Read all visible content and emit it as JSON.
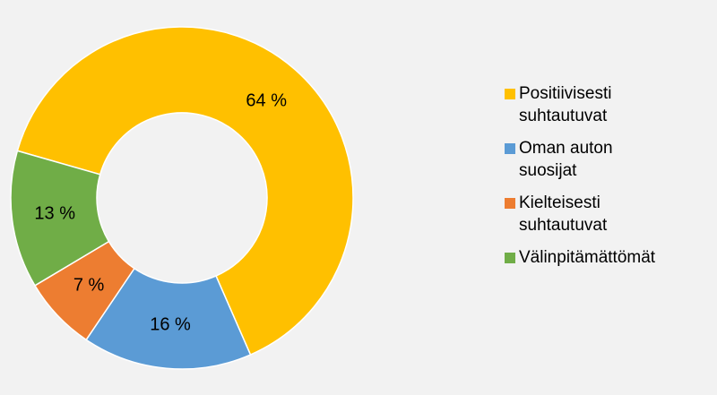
{
  "chart_data": {
    "type": "donut",
    "categories": [
      "Positiivisesti suhtautuvat",
      "Oman auton suosijat",
      "Kielteisesti suhtautuvat",
      "Välinpitämättömät"
    ],
    "values": [
      64,
      16,
      7,
      13
    ],
    "value_labels": [
      "64 %",
      "16 %",
      "7 %",
      "13 %"
    ],
    "colors": [
      "#ffc000",
      "#5b9bd5",
      "#ed7d31",
      "#70ad47"
    ],
    "legend": "right"
  }
}
